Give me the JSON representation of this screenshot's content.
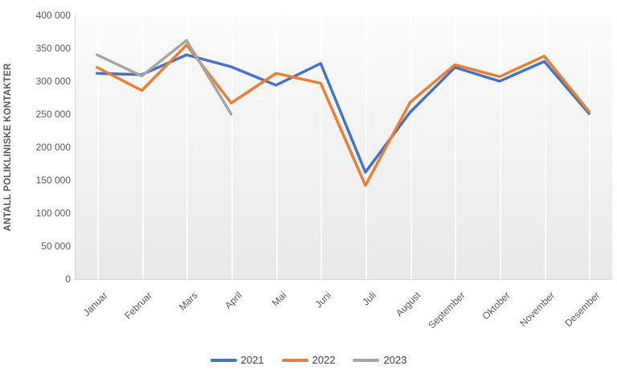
{
  "chart_data": {
    "type": "line",
    "title": "",
    "xlabel": "",
    "ylabel": "ANTALL POLIKLINISKE KONTAKTER",
    "ylim": [
      0,
      400000
    ],
    "ytick_step": 50000,
    "ytick_labels": [
      "0",
      "50 000",
      "100 000",
      "150 000",
      "200 000",
      "250 000",
      "300 000",
      "350 000",
      "400 000"
    ],
    "grid": "vertical-only",
    "legend_position": "bottom-center",
    "categories": [
      "Januar",
      "Februar",
      "Mars",
      "April",
      "Mai",
      "Juni",
      "Juli",
      "August",
      "September",
      "Oktober",
      "November",
      "Desember"
    ],
    "series": [
      {
        "name": "2021",
        "color": "#4472C4",
        "values": [
          312000,
          310000,
          340000,
          322000,
          294000,
          327000,
          162000,
          253000,
          321000,
          300000,
          330000,
          251000
        ]
      },
      {
        "name": "2022",
        "color": "#ED7D31",
        "values": [
          321000,
          286000,
          355000,
          267000,
          312000,
          297000,
          142000,
          268000,
          325000,
          307000,
          338000,
          254000
        ]
      },
      {
        "name": "2023",
        "color": "#A5A5A5",
        "values": [
          340000,
          308000,
          362000,
          250000,
          null,
          null,
          null,
          null,
          null,
          null,
          null,
          null
        ]
      }
    ]
  },
  "style": {
    "axis_text_color": "#595959",
    "legend_text_color": "#404040",
    "gridline_color": "#ffffff",
    "plot_bg_top": "#fbfbfb",
    "plot_bg_bottom": "#e9e9e9"
  }
}
